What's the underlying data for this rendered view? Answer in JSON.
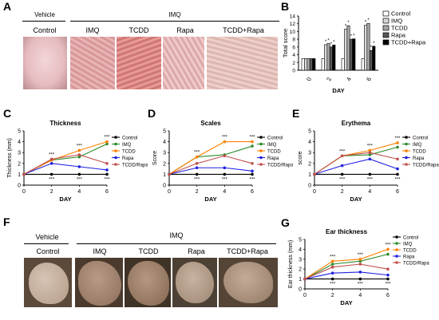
{
  "panel_letters": [
    "A",
    "B",
    "C",
    "D",
    "E",
    "F",
    "G"
  ],
  "panelA": {
    "vehicle_label": "Vehicle",
    "imq_label": "IMQ",
    "groups": [
      "Control",
      "IMQ",
      "TCDD",
      "Rapa",
      "TCDD+Rapa"
    ]
  },
  "panelF": {
    "vehicle_label": "Vehicle",
    "imq_label": "IMQ",
    "groups": [
      "Control",
      "IMQ",
      "TCDD",
      "Rapa",
      "TCDD+Rapa"
    ]
  },
  "colors": {
    "Control": "#000000",
    "IMQ": "#2e8b2e",
    "TCDD": "#ff8000",
    "Rapa": "#2020e0",
    "TCDD/Rapa": "#c0504d"
  },
  "chart_data": [
    {
      "panel": "B",
      "type": "bar",
      "title": "",
      "xlabel": "DAY",
      "ylabel": "Total score",
      "ylim": [
        0,
        14
      ],
      "yticks": [
        0,
        2,
        4,
        6,
        8,
        10,
        12,
        14
      ],
      "categories": [
        "0",
        "2",
        "4",
        "6"
      ],
      "legend": "top-right",
      "series": [
        {
          "name": "Control",
          "fill": "#ffffff",
          "values": [
            3,
            3,
            3,
            3
          ]
        },
        {
          "name": "IMQ",
          "fill": "#d9d9d9",
          "values": [
            3,
            6.6,
            10.6,
            11.6
          ]
        },
        {
          "name": "TCDD",
          "fill": "#a6a6a6",
          "values": [
            3,
            6.9,
            11.5,
            12.1
          ]
        },
        {
          "name": "Rapa",
          "fill": "#595959",
          "values": [
            3,
            6,
            8,
            5.1
          ]
        },
        {
          "name": "TCDD+Rapa",
          "fill": "#000000",
          "values": [
            3,
            6.5,
            8.1,
            6.2
          ]
        }
      ],
      "annotations": [
        "*",
        "*",
        "*",
        "*",
        "*",
        "*",
        "*",
        "*",
        "*",
        "*",
        "*",
        "*"
      ]
    },
    {
      "panel": "C",
      "type": "line",
      "title": "Thickness",
      "xlabel": "DAY",
      "ylabel": "Thickness (mm)",
      "x": [
        0,
        2,
        4,
        6
      ],
      "ylim": [
        0,
        5
      ],
      "yticks": [
        0,
        1,
        2,
        3,
        4,
        5
      ],
      "legend": "right",
      "series": [
        {
          "name": "Control",
          "values": [
            1,
            1,
            1,
            1
          ]
        },
        {
          "name": "IMQ",
          "values": [
            1,
            2.3,
            2.6,
            3.8
          ]
        },
        {
          "name": "TCDD",
          "values": [
            1,
            2.3,
            3.2,
            4
          ]
        },
        {
          "name": "Rapa",
          "values": [
            1,
            2,
            1.7,
            1.4
          ]
        },
        {
          "name": "TCDD/Rapa",
          "values": [
            1,
            2.4,
            2.8,
            2
          ]
        }
      ],
      "annotations": [
        "***",
        "***",
        "***",
        "***",
        "***",
        "***",
        "***",
        "***",
        "***",
        "***"
      ]
    },
    {
      "panel": "D",
      "type": "line",
      "title": "Scales",
      "xlabel": "DAY",
      "ylabel": "Score",
      "x": [
        0,
        2,
        4,
        6
      ],
      "ylim": [
        0,
        5
      ],
      "yticks": [
        0,
        1,
        2,
        3,
        4,
        5
      ],
      "legend": "right",
      "series": [
        {
          "name": "Control",
          "values": [
            1,
            1,
            1,
            1
          ]
        },
        {
          "name": "IMQ",
          "values": [
            1,
            2.6,
            2.8,
            3.6
          ]
        },
        {
          "name": "TCDD",
          "values": [
            1,
            2.6,
            4,
            4
          ]
        },
        {
          "name": "Rapa",
          "values": [
            1,
            1.6,
            1.6,
            1.3
          ]
        },
        {
          "name": "TCDD/Rapa",
          "values": [
            1,
            2,
            2.7,
            2
          ]
        }
      ],
      "annotations": [
        "***",
        "***",
        "***",
        "***",
        "***",
        "***",
        "***",
        "***",
        "***",
        "***"
      ]
    },
    {
      "panel": "E",
      "type": "line",
      "title": "Erythema",
      "xlabel": "DAY",
      "ylabel": "score",
      "x": [
        0,
        2,
        4,
        6
      ],
      "ylim": [
        0,
        5
      ],
      "yticks": [
        0,
        1,
        2,
        3,
        4,
        5
      ],
      "legend": "right",
      "series": [
        {
          "name": "Control",
          "values": [
            1,
            1,
            1,
            1
          ]
        },
        {
          "name": "IMQ",
          "values": [
            1,
            2.7,
            2.8,
            3.5
          ]
        },
        {
          "name": "TCDD",
          "values": [
            1,
            2.7,
            3.2,
            3.9
          ]
        },
        {
          "name": "Rapa",
          "values": [
            1,
            1.8,
            2.4,
            1.5
          ]
        },
        {
          "name": "TCDD/Rapa",
          "values": [
            1,
            2.7,
            3,
            2.4
          ]
        }
      ],
      "annotations": [
        "***",
        "***",
        "***",
        "***",
        "***",
        "***",
        "***",
        "***",
        "***",
        "***"
      ]
    },
    {
      "panel": "G",
      "type": "line",
      "title": "Ear thickness",
      "xlabel": "DAY",
      "ylabel": "Ear thickness (mm)",
      "x": [
        0,
        2,
        4,
        6
      ],
      "ylim": [
        0,
        5
      ],
      "yticks": [
        0,
        1,
        2,
        3,
        4,
        5
      ],
      "legend": "top-right",
      "series": [
        {
          "name": "Control",
          "values": [
            1,
            1,
            1,
            1
          ]
        },
        {
          "name": "IMQ",
          "values": [
            1,
            2.5,
            2.8,
            3.5
          ]
        },
        {
          "name": "TCDD",
          "values": [
            1,
            2.8,
            3,
            4
          ]
        },
        {
          "name": "Rapa",
          "values": [
            1,
            1.6,
            1.7,
            1.4
          ]
        },
        {
          "name": "TCDD/Rapa",
          "values": [
            1,
            2.2,
            2.5,
            2
          ]
        }
      ],
      "annotations": [
        "***",
        "***",
        "***",
        "***",
        "***",
        "***",
        "***",
        "***",
        "***",
        "***"
      ]
    }
  ]
}
